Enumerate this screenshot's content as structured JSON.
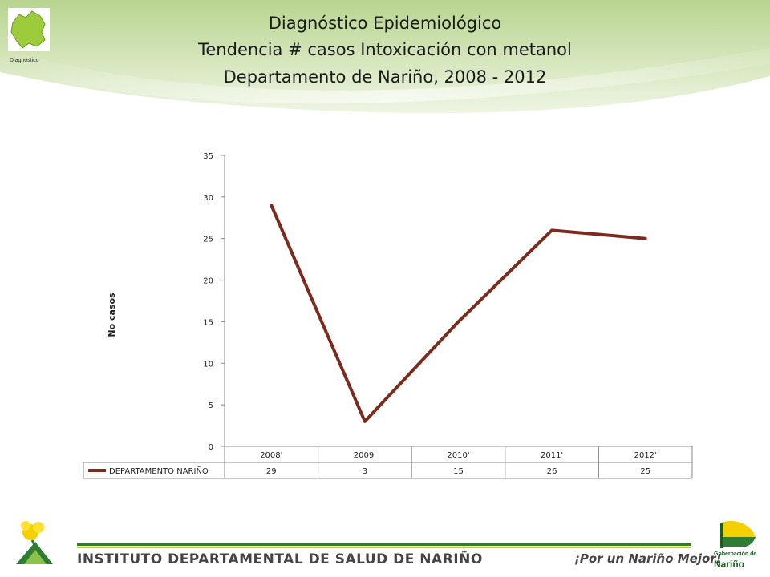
{
  "header": {
    "title_line1": "Diagnóstico Epidemiológico",
    "title_line2": "Tendencia # casos Intoxicación con metanol",
    "title_line3": "Departamento de Nariño,  2008 - 2012",
    "logo_caption": "Diagnóstico"
  },
  "colors": {
    "series_line": "#7b2c1c",
    "header_green": "#a5c879",
    "footer_green": "#2e7d32",
    "footer_lime": "#c8d400"
  },
  "footer": {
    "institute": "INSTITUTO DEPARTAMENTAL DE SALUD DE NARIÑO",
    "slogan": "¡Por un Nariño Mejor!",
    "gob_line1": "Gobernación de",
    "gob_line2": "Nariño"
  },
  "chart_data": {
    "type": "line",
    "ylabel": "No casos",
    "xlabel": "",
    "ylim": [
      0,
      35
    ],
    "yticks": [
      0,
      5,
      10,
      15,
      20,
      25,
      30,
      35
    ],
    "categories": [
      "2008'",
      "2009'",
      "2010'",
      "2011'",
      "2012'"
    ],
    "series": [
      {
        "name": "DEPARTAMENTO NARIÑO",
        "values": [
          29,
          3,
          15,
          26,
          25
        ]
      }
    ],
    "data_table": true
  }
}
